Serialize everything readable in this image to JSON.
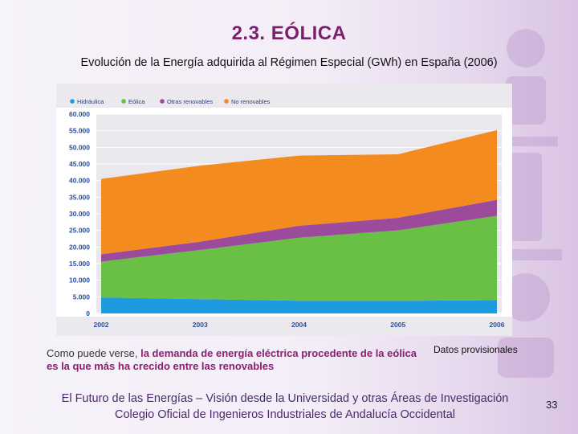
{
  "slide": {
    "title": "2.3. EÓLICA",
    "subtitle": "Evolución de la Energía adquirida al Régimen Especial (GWh) en España (2006)",
    "note_plain": "Como puede verse, ",
    "note_highlight": "la demanda de energía eléctrica procedente de la eólica es la que más ha crecido entre las renovables",
    "provisional": "Datos provisionales",
    "footer_line1": "El Futuro de las Energías – Visión desde la Universidad y otras Áreas de Investigación",
    "footer_line2": "Colegio Oficial de Ingenieros Industriales de Andalucía Occidental",
    "page_number": "33"
  },
  "chart_data": {
    "type": "area",
    "stacked": true,
    "title": "Evolución de la Energía adquirida al Régimen Especial (GWh) en España (2006)",
    "xlabel": "",
    "ylabel": "",
    "x": [
      "2002",
      "2003",
      "2004",
      "2005",
      "2006"
    ],
    "ylim": [
      0,
      60000
    ],
    "yticks": [
      0,
      5000,
      10000,
      15000,
      20000,
      25000,
      30000,
      35000,
      40000,
      45000,
      50000,
      55000,
      60000
    ],
    "ytick_labels": [
      "0",
      "5.000",
      "10.000",
      "15.000",
      "20.000",
      "25.000",
      "30.000",
      "35.000",
      "40.000",
      "45.000",
      "50.000",
      "55.000",
      "60.000"
    ],
    "legend_position": "top",
    "series": [
      {
        "name": "Hidráulica",
        "color": "#1e9be0",
        "values": [
          4800,
          4300,
          3800,
          3800,
          4000
        ]
      },
      {
        "name": "Eólica",
        "color": "#6abf45",
        "values": [
          10800,
          14800,
          19000,
          21200,
          25400
        ]
      },
      {
        "name": "Otras renovables",
        "color": "#9c4a9c",
        "values": [
          2200,
          2500,
          3600,
          3800,
          4800
        ]
      },
      {
        "name": "No renovables",
        "color": "#f38b1f",
        "values": [
          22700,
          22900,
          21100,
          19100,
          21000
        ]
      }
    ]
  }
}
